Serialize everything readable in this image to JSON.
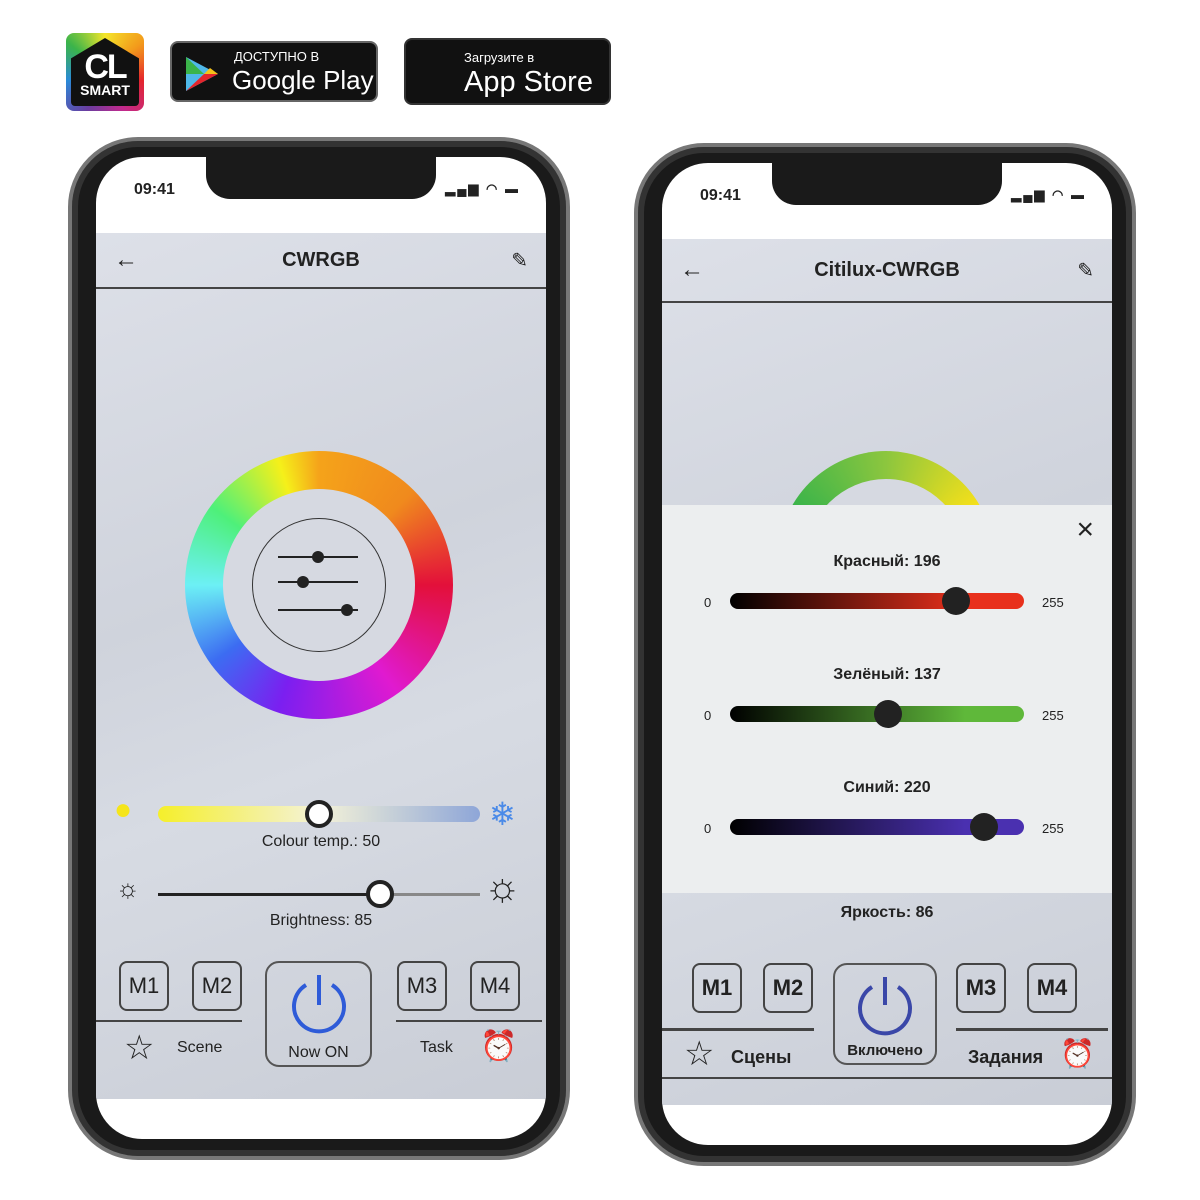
{
  "brand": {
    "logo_top": "CL",
    "logo_bottom": "SMART"
  },
  "google_play": {
    "small": "ДОСТУПНО В",
    "big": "Google Play"
  },
  "app_store": {
    "small": "Загрузите в",
    "big": "App Store"
  },
  "left_phone": {
    "time": "09:41",
    "title": "CWRGB",
    "colour_temp_label": "Colour temp.: 50",
    "colour_temp": 50,
    "brightness_label": "Brightness: 85",
    "brightness": 85,
    "memory": [
      "M1",
      "M2",
      "M3",
      "M4"
    ],
    "scene": "Scene",
    "power": "Now ON",
    "task": "Task"
  },
  "right_phone": {
    "time": "09:41",
    "title": "Citilux-CWRGB",
    "close": "×",
    "sliders": [
      {
        "label": "Красный: 196",
        "value": 196,
        "min": "0",
        "max": "255",
        "color": "#e8301c"
      },
      {
        "label": "Зелёный: 137",
        "value": 137,
        "min": "0",
        "max": "255",
        "color": "#5fb83a"
      },
      {
        "label": "Синий: 220",
        "value": 220,
        "min": "0",
        "max": "255",
        "color": "#4a30b0"
      }
    ],
    "brightness_label": "Яркость: 86",
    "memory": [
      "M1",
      "M2",
      "M3",
      "M4"
    ],
    "scene": "Сцены",
    "power": "Включено",
    "task": "Задания"
  },
  "colors": {
    "power_blue": "#2e5bd8",
    "power_blue_dark": "#3a47a8"
  }
}
